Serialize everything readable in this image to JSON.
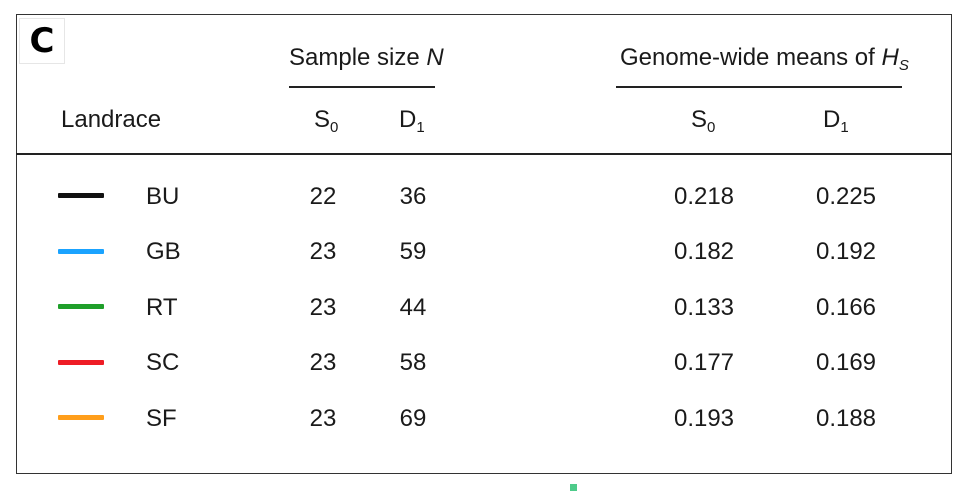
{
  "panel_label": "C",
  "groups": {
    "sample_size": {
      "title": "Sample size ",
      "variable": "N"
    },
    "hs_means": {
      "title": "Genome-wide means of ",
      "variable": "H",
      "variable_sub": "S"
    }
  },
  "columns": {
    "landrace": "Landrace",
    "s0": {
      "letter": "S",
      "sub": "0"
    },
    "d1": {
      "letter": "D",
      "sub": "1"
    }
  },
  "colors": {
    "BU": "#111111",
    "GB": "#1aa3ff",
    "RT": "#1f9f2a",
    "SC": "#ee1c25",
    "SF": "#ff9e1b"
  },
  "rows": [
    {
      "name": "BU",
      "color": "#111111",
      "n_s0": "22",
      "n_d1": "36",
      "hs_s0": "0.218",
      "hs_d1": "0.225"
    },
    {
      "name": "GB",
      "color": "#1aa3ff",
      "n_s0": "23",
      "n_d1": "59",
      "hs_s0": "0.182",
      "hs_d1": "0.192"
    },
    {
      "name": "RT",
      "color": "#1f9f2a",
      "n_s0": "23",
      "n_d1": "44",
      "hs_s0": "0.133",
      "hs_d1": "0.166"
    },
    {
      "name": "SC",
      "color": "#ee1c25",
      "n_s0": "23",
      "n_d1": "58",
      "hs_s0": "0.177",
      "hs_d1": "0.169"
    },
    {
      "name": "SF",
      "color": "#ff9e1b",
      "n_s0": "23",
      "n_d1": "69",
      "hs_s0": "0.193",
      "hs_d1": "0.188"
    }
  ]
}
